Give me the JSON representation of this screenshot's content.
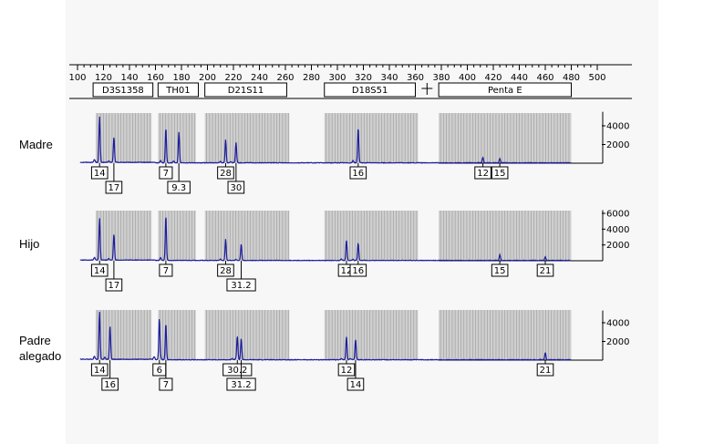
{
  "chart_data": {
    "type": "line",
    "xlabel": "",
    "ylabel": "",
    "xlim": [
      100,
      500
    ],
    "x_ticks": [
      100,
      120,
      140,
      160,
      180,
      200,
      220,
      240,
      260,
      280,
      300,
      320,
      340,
      360,
      380,
      400,
      420,
      440,
      460,
      480,
      500
    ],
    "grid": true,
    "markers": [
      {
        "name": "D3S1358",
        "range": [
          112,
          158
        ]
      },
      {
        "name": "TH01",
        "range": [
          162,
          193
        ]
      },
      {
        "name": "D21S11",
        "range": [
          198,
          261
        ]
      },
      {
        "name": "D18S51",
        "range": [
          290,
          360
        ]
      },
      {
        "name": "Penta E",
        "range": [
          378,
          480
        ]
      }
    ],
    "bins": [
      {
        "range": [
          114,
          157
        ]
      },
      {
        "range": [
          162,
          191
        ]
      },
      {
        "range": [
          198,
          263
        ]
      },
      {
        "range": [
          290,
          362
        ]
      },
      {
        "range": [
          378,
          480
        ]
      }
    ],
    "panels": [
      {
        "label": "Madre",
        "y_ticks": [
          2000,
          4000
        ],
        "ylim": [
          0,
          5500
        ],
        "peaks": [
          {
            "x": 117,
            "h": 4900
          },
          {
            "x": 128,
            "h": 2700
          },
          {
            "x": 168,
            "h": 3750
          },
          {
            "x": 178,
            "h": 3300
          },
          {
            "x": 214,
            "h": 2500
          },
          {
            "x": 222,
            "h": 2200
          },
          {
            "x": 316,
            "h": 3800
          },
          {
            "x": 412,
            "h": 600
          },
          {
            "x": 425,
            "h": 450
          }
        ],
        "alleles": [
          {
            "label": "14",
            "x": 117,
            "row": 1
          },
          {
            "label": "17",
            "x": 128,
            "row": 2
          },
          {
            "label": "7",
            "x": 168,
            "row": 1
          },
          {
            "label": "9.3",
            "x": 178,
            "row": 2
          },
          {
            "label": "28",
            "x": 214,
            "row": 1
          },
          {
            "label": "30",
            "x": 222,
            "row": 2
          },
          {
            "label": "16",
            "x": 316,
            "row": 1
          },
          {
            "label": "12",
            "x": 412,
            "row": 1
          },
          {
            "label": "15",
            "x": 425,
            "row": 1
          }
        ]
      },
      {
        "label": "Hijo",
        "y_ticks": [
          2000,
          4000,
          6000
        ],
        "ylim": [
          0,
          6400
        ],
        "peaks": [
          {
            "x": 117,
            "h": 5300
          },
          {
            "x": 128,
            "h": 3300
          },
          {
            "x": 168,
            "h": 5700
          },
          {
            "x": 214,
            "h": 2700
          },
          {
            "x": 226,
            "h": 2100
          },
          {
            "x": 307,
            "h": 2600
          },
          {
            "x": 316,
            "h": 2200
          },
          {
            "x": 425,
            "h": 700
          },
          {
            "x": 460,
            "h": 450
          }
        ],
        "alleles": [
          {
            "label": "14",
            "x": 117,
            "row": 1
          },
          {
            "label": "17",
            "x": 128,
            "row": 2
          },
          {
            "label": "7",
            "x": 168,
            "row": 1
          },
          {
            "label": "28",
            "x": 214,
            "row": 1
          },
          {
            "label": "31.2",
            "x": 226,
            "row": 2
          },
          {
            "label": "12",
            "x": 307,
            "row": 1
          },
          {
            "label": "16",
            "x": 316,
            "row": 1
          },
          {
            "label": "15",
            "x": 425,
            "row": 1
          },
          {
            "label": "21",
            "x": 460,
            "row": 1
          }
        ]
      },
      {
        "label": "Padre alegado",
        "label_lines": [
          "Padre",
          "alegado"
        ],
        "y_ticks": [
          2000,
          4000
        ],
        "ylim": [
          0,
          5300
        ],
        "peaks": [
          {
            "x": 117,
            "h": 5100
          },
          {
            "x": 125,
            "h": 3600
          },
          {
            "x": 163,
            "h": 4400
          },
          {
            "x": 168,
            "h": 3900
          },
          {
            "x": 223,
            "h": 2500
          },
          {
            "x": 226,
            "h": 2300
          },
          {
            "x": 307,
            "h": 2500
          },
          {
            "x": 314,
            "h": 2200
          },
          {
            "x": 460,
            "h": 750
          }
        ],
        "alleles": [
          {
            "label": "14",
            "x": 117,
            "row": 1
          },
          {
            "label": "16",
            "x": 125,
            "row": 2
          },
          {
            "label": "6",
            "x": 163,
            "row": 1
          },
          {
            "label": "7",
            "x": 168,
            "row": 2
          },
          {
            "label": "30.2",
            "x": 223,
            "row": 1
          },
          {
            "label": "31.2",
            "x": 226,
            "row": 2
          },
          {
            "label": "12",
            "x": 307,
            "row": 1
          },
          {
            "label": "14",
            "x": 314,
            "row": 2
          },
          {
            "label": "21",
            "x": 460,
            "row": 1
          }
        ]
      }
    ]
  },
  "colors": {
    "trace": "#1c1c9e",
    "bin_fill": "#cfcfcf",
    "bin_line": "#9a9a9a",
    "axis": "#000000",
    "panel_bg": "#f7f7f7"
  }
}
